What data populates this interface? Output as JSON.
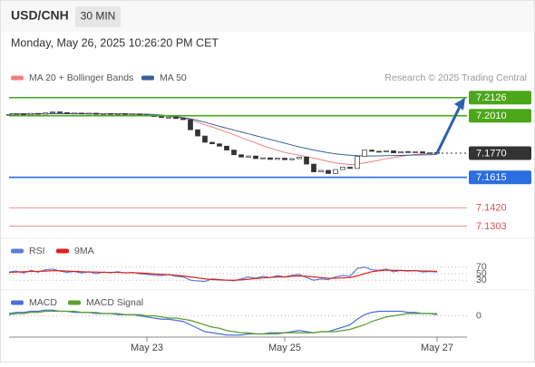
{
  "header": {
    "symbol": "USD/CNH",
    "interval": "30 MIN",
    "timestamp": "Monday, May 26, 2025 10:26:20 PM CET",
    "credit": "Research © 2025 Trading Central"
  },
  "chart_data": [
    {
      "type": "candlestick",
      "categories": [
        null,
        null,
        null,
        null,
        null,
        null,
        null,
        null,
        null,
        null,
        null,
        null,
        null,
        null,
        null,
        null,
        null,
        null,
        null,
        null,
        null,
        null,
        null,
        null,
        null,
        null,
        null,
        null,
        null,
        null,
        null,
        null,
        null,
        null,
        null,
        null,
        null,
        null,
        null,
        null,
        null,
        null,
        null,
        null,
        null,
        null,
        null,
        null,
        null,
        null,
        null,
        null,
        null,
        null,
        null,
        null,
        null,
        null,
        null,
        null
      ],
      "open": [
        7.2015,
        7.2018,
        7.2022,
        7.2016,
        7.2025,
        7.202,
        7.2028,
        7.2035,
        7.203,
        7.2024,
        7.2027,
        7.2021,
        7.2026,
        7.2019,
        7.2024,
        7.202,
        7.2023,
        7.2018,
        7.2021,
        7.2015,
        7.201,
        7.2004,
        7.1998,
        7.2001,
        7.1992,
        7.1985,
        7.192,
        7.188,
        7.184,
        7.183,
        7.1815,
        7.179,
        7.176,
        7.1745,
        7.1752,
        7.1735,
        7.174,
        7.173,
        7.1738,
        7.1728,
        7.1735,
        7.1745,
        7.17,
        7.165,
        7.166,
        7.164,
        7.1665,
        7.168,
        7.1672,
        7.175,
        7.179,
        7.1782,
        7.1778,
        7.1785,
        7.1772,
        7.178,
        7.1775,
        7.1779,
        7.1771,
        7.1774
      ],
      "close": [
        7.2018,
        7.2022,
        7.2016,
        7.2025,
        7.202,
        7.2028,
        7.2035,
        7.203,
        7.2024,
        7.2027,
        7.2021,
        7.2026,
        7.2019,
        7.2024,
        7.202,
        7.2023,
        7.2018,
        7.2021,
        7.2015,
        7.201,
        7.2004,
        7.1998,
        7.2001,
        7.1992,
        7.1985,
        7.192,
        7.188,
        7.184,
        7.183,
        7.1815,
        7.179,
        7.176,
        7.1745,
        7.1752,
        7.1735,
        7.174,
        7.173,
        7.1738,
        7.1728,
        7.1735,
        7.1745,
        7.17,
        7.165,
        7.166,
        7.164,
        7.1665,
        7.168,
        7.1672,
        7.175,
        7.179,
        7.1782,
        7.1778,
        7.1785,
        7.1772,
        7.178,
        7.1775,
        7.1779,
        7.1771,
        7.1774,
        7.177
      ],
      "up_color": "#ffffff",
      "down_color": "#333333",
      "series": [
        {
          "name": "MA 20 + Bollinger Bands",
          "color": "#f08080",
          "values": [
            7.202,
            7.202,
            7.2021,
            7.2021,
            7.2022,
            7.2023,
            7.2024,
            7.2025,
            7.2025,
            7.2025,
            7.2025,
            7.2024,
            7.2024,
            7.2023,
            7.2022,
            7.2022,
            7.2021,
            7.202,
            7.2019,
            7.2017,
            7.2014,
            7.201,
            7.2006,
            7.2,
            7.1994,
            7.1982,
            7.1968,
            7.1952,
            7.1938,
            7.1922,
            7.1905,
            7.1888,
            7.187,
            7.1852,
            7.1835,
            7.1818,
            7.1802,
            7.1788,
            7.1775,
            7.1765,
            7.1757,
            7.1748,
            7.1738,
            7.1728,
            7.1717,
            7.1708,
            7.1702,
            7.1697,
            7.17,
            7.1708,
            7.1716,
            7.1725,
            7.1735,
            7.1742,
            7.175,
            7.1756,
            7.1762,
            7.1766,
            7.1768,
            7.177
          ]
        },
        {
          "name": "MA 50",
          "color": "#3a5f9a",
          "values": [
            7.2022,
            7.2022,
            7.2022,
            7.2023,
            7.2023,
            7.2023,
            7.2023,
            7.2023,
            7.2023,
            7.2023,
            7.2023,
            7.2023,
            7.2023,
            7.2022,
            7.2022,
            7.2022,
            7.2022,
            7.2021,
            7.2021,
            7.202,
            7.2018,
            7.2014,
            7.201,
            7.2004,
            7.1998,
            7.199,
            7.198,
            7.1968,
            7.1955,
            7.1942,
            7.193,
            7.1918,
            7.1906,
            7.1894,
            7.1882,
            7.187,
            7.1858,
            7.1846,
            7.1834,
            7.1822,
            7.181,
            7.18,
            7.179,
            7.1781,
            7.1773,
            7.1766,
            7.1761,
            7.1757,
            7.1754,
            7.1752,
            7.1752,
            7.1753,
            7.1754,
            7.1755,
            7.1756,
            7.1757,
            7.1758,
            7.1759,
            7.176,
            7.1762
          ]
        }
      ],
      "ylim": [
        7.123,
        7.22
      ],
      "levels": [
        {
          "value": 7.2126,
          "label": "7.2126",
          "color": "#4ca61a",
          "boxed": true,
          "line": "solid"
        },
        {
          "value": 7.201,
          "label": "7.2010",
          "color": "#4ca61a",
          "boxed": true,
          "line": "solid"
        },
        {
          "value": 7.177,
          "label": "7.1770",
          "color": "#333333",
          "boxed": true,
          "line": "dotted"
        },
        {
          "value": 7.1615,
          "label": "7.1615",
          "color": "#2a6ee0",
          "boxed": true,
          "line": "solid"
        },
        {
          "value": 7.142,
          "label": "7.1420",
          "color": "#e05050",
          "boxed": false,
          "line": "solid"
        },
        {
          "value": 7.1303,
          "label": "7.1303",
          "color": "#e05050",
          "boxed": false,
          "line": "solid"
        }
      ]
    },
    {
      "type": "line",
      "categories": [
        null,
        null,
        null,
        null,
        null,
        null,
        null,
        null,
        null,
        null,
        null,
        null,
        null,
        null,
        null,
        null,
        null,
        null,
        null,
        null,
        null,
        null,
        null,
        null,
        null,
        null,
        null,
        null,
        null,
        null,
        null,
        null,
        null,
        null,
        null,
        null,
        null,
        null,
        null,
        null,
        null,
        null,
        null,
        null,
        null,
        null,
        null,
        null,
        null,
        null,
        null,
        null,
        null,
        null,
        null,
        null,
        null,
        null,
        null,
        null
      ],
      "series": [
        {
          "name": "RSI",
          "color": "#5b7fd6",
          "values": [
            55,
            58,
            52,
            60,
            55,
            62,
            64,
            58,
            54,
            57,
            52,
            56,
            50,
            55,
            53,
            56,
            52,
            54,
            50,
            48,
            45,
            44,
            47,
            42,
            40,
            30,
            28,
            26,
            34,
            32,
            30,
            28,
            34,
            40,
            36,
            42,
            38,
            44,
            40,
            45,
            48,
            38,
            30,
            34,
            32,
            40,
            44,
            42,
            66,
            70,
            62,
            60,
            64,
            56,
            60,
            58,
            60,
            55,
            57,
            55
          ]
        },
        {
          "name": "9MA",
          "color": "#e02020",
          "values": [
            54,
            55,
            56,
            57,
            57,
            58,
            59,
            59,
            58,
            57,
            56,
            55,
            55,
            54,
            54,
            54,
            53,
            53,
            52,
            51,
            49,
            48,
            47,
            45,
            43,
            40,
            37,
            34,
            32,
            31,
            30,
            30,
            31,
            33,
            35,
            37,
            38,
            40,
            40,
            42,
            43,
            42,
            40,
            38,
            36,
            36,
            37,
            38,
            43,
            50,
            56,
            59,
            61,
            60,
            60,
            59,
            59,
            58,
            58,
            57
          ]
        }
      ],
      "ylim": [
        0,
        100
      ],
      "yticks": [
        70,
        50,
        30
      ]
    },
    {
      "type": "line",
      "categories": [
        null,
        null,
        null,
        null,
        null,
        null,
        null,
        null,
        null,
        null,
        null,
        null,
        null,
        null,
        null,
        null,
        null,
        null,
        null,
        "May 23",
        null,
        null,
        null,
        null,
        null,
        null,
        null,
        null,
        null,
        null,
        null,
        null,
        null,
        null,
        null,
        null,
        null,
        null,
        "May 25",
        null,
        null,
        null,
        null,
        null,
        null,
        null,
        null,
        null,
        null,
        null,
        null,
        null,
        null,
        null,
        null,
        null,
        null,
        null,
        null,
        "May 27"
      ],
      "series": [
        {
          "name": "MACD",
          "color": "#4a6fdc",
          "values": [
            0.0002,
            0.0003,
            0.0003,
            0.0004,
            0.0004,
            0.0005,
            0.0005,
            0.0004,
            0.0004,
            0.0003,
            0.0003,
            0.0003,
            0.0002,
            0.0002,
            0.0002,
            0.0001,
            0.0001,
            0.0001,
            0.0,
            -0.0001,
            -0.0002,
            -0.0003,
            -0.0003,
            -0.0004,
            -0.0005,
            -0.0008,
            -0.0011,
            -0.0014,
            -0.0015,
            -0.0016,
            -0.0017,
            -0.0017,
            -0.0017,
            -0.0016,
            -0.0016,
            -0.0016,
            -0.0015,
            -0.0015,
            -0.0015,
            -0.0014,
            -0.0013,
            -0.0014,
            -0.0015,
            -0.0014,
            -0.0014,
            -0.0012,
            -0.001,
            -0.0008,
            -0.0003,
            0.0001,
            0.0003,
            0.0004,
            0.0004,
            0.0004,
            0.0004,
            0.0003,
            0.0003,
            0.0002,
            0.0002,
            0.0001
          ]
        },
        {
          "name": "MACD Signal",
          "color": "#5aa02c",
          "values": [
            0.0001,
            0.0002,
            0.0002,
            0.0003,
            0.0003,
            0.0004,
            0.0004,
            0.0004,
            0.0004,
            0.0004,
            0.0003,
            0.0003,
            0.0003,
            0.0002,
            0.0002,
            0.0002,
            0.0001,
            0.0001,
            0.0001,
            0.0,
            0.0,
            -0.0001,
            -0.0002,
            -0.0002,
            -0.0003,
            -0.0004,
            -0.0006,
            -0.0008,
            -0.001,
            -0.0011,
            -0.0013,
            -0.0014,
            -0.0015,
            -0.0015,
            -0.0016,
            -0.0016,
            -0.0016,
            -0.0016,
            -0.0015,
            -0.0015,
            -0.0015,
            -0.0015,
            -0.0015,
            -0.0014,
            -0.0014,
            -0.0014,
            -0.0013,
            -0.0012,
            -0.001,
            -0.0008,
            -0.0005,
            -0.0003,
            -0.0001,
            0.0,
            0.0001,
            0.0002,
            0.0002,
            0.0002,
            0.0002,
            0.0002
          ]
        }
      ],
      "ylim": [
        -0.0018,
        0.0006
      ],
      "yticks": [
        0
      ]
    }
  ]
}
